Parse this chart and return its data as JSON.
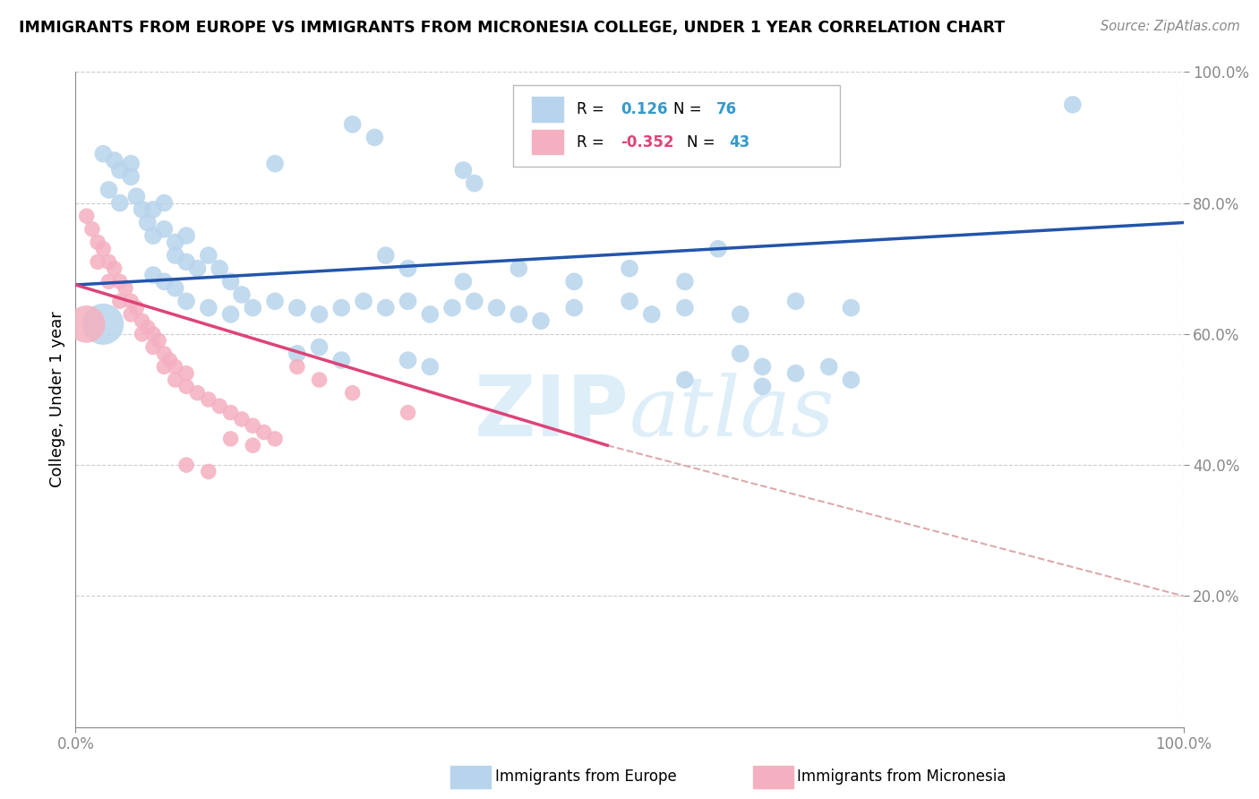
{
  "title": "IMMIGRANTS FROM EUROPE VS IMMIGRANTS FROM MICRONESIA COLLEGE, UNDER 1 YEAR CORRELATION CHART",
  "source": "Source: ZipAtlas.com",
  "ylabel": "College, Under 1 year",
  "xlim": [
    0.0,
    1.0
  ],
  "ylim": [
    0.0,
    1.0
  ],
  "xtick_positions": [
    0.0,
    1.0
  ],
  "xtick_labels": [
    "0.0%",
    "100.0%"
  ],
  "ytick_positions": [
    0.2,
    0.4,
    0.6,
    0.8,
    1.0
  ],
  "ytick_labels": [
    "20.0%",
    "40.0%",
    "60.0%",
    "80.0%",
    "100.0%"
  ],
  "blue_R": 0.126,
  "blue_N": 76,
  "pink_R": -0.352,
  "pink_N": 43,
  "blue_scatter_color": "#b8d4ec",
  "pink_scatter_color": "#f4b0c0",
  "blue_line_color": "#2255aa",
  "pink_line_color": "#dd4477",
  "pink_dash_color": "#ddaaaa",
  "grid_color": "#cccccc",
  "watermark_color": "#ddeef8",
  "blue_legend_color": "#b8d4ec",
  "pink_legend_color": "#f4b0c0",
  "blue_R_color": "#3399cc",
  "pink_R_color": "#dd4477",
  "N_color": "#3399cc",
  "blue_line": [
    0.0,
    0.675,
    1.0,
    0.77
  ],
  "pink_line_solid": [
    0.0,
    0.675,
    0.48,
    0.43
  ],
  "pink_line_dash": [
    0.48,
    0.43,
    1.0,
    0.2
  ],
  "blue_points": [
    [
      0.025,
      0.875
    ],
    [
      0.035,
      0.865
    ],
    [
      0.04,
      0.85
    ],
    [
      0.05,
      0.86
    ],
    [
      0.03,
      0.82
    ],
    [
      0.04,
      0.8
    ],
    [
      0.055,
      0.81
    ],
    [
      0.05,
      0.84
    ],
    [
      0.06,
      0.79
    ],
    [
      0.065,
      0.77
    ],
    [
      0.07,
      0.79
    ],
    [
      0.08,
      0.8
    ],
    [
      0.07,
      0.75
    ],
    [
      0.08,
      0.76
    ],
    [
      0.09,
      0.74
    ],
    [
      0.1,
      0.75
    ],
    [
      0.09,
      0.72
    ],
    [
      0.1,
      0.71
    ],
    [
      0.11,
      0.7
    ],
    [
      0.12,
      0.72
    ],
    [
      0.13,
      0.7
    ],
    [
      0.14,
      0.68
    ],
    [
      0.15,
      0.66
    ],
    [
      0.07,
      0.69
    ],
    [
      0.08,
      0.68
    ],
    [
      0.09,
      0.67
    ],
    [
      0.1,
      0.65
    ],
    [
      0.12,
      0.64
    ],
    [
      0.14,
      0.63
    ],
    [
      0.16,
      0.64
    ],
    [
      0.18,
      0.65
    ],
    [
      0.2,
      0.64
    ],
    [
      0.22,
      0.63
    ],
    [
      0.24,
      0.64
    ],
    [
      0.26,
      0.65
    ],
    [
      0.28,
      0.64
    ],
    [
      0.3,
      0.65
    ],
    [
      0.32,
      0.63
    ],
    [
      0.34,
      0.64
    ],
    [
      0.36,
      0.65
    ],
    [
      0.38,
      0.64
    ],
    [
      0.4,
      0.63
    ],
    [
      0.42,
      0.62
    ],
    [
      0.45,
      0.64
    ],
    [
      0.5,
      0.65
    ],
    [
      0.52,
      0.63
    ],
    [
      0.55,
      0.64
    ],
    [
      0.6,
      0.63
    ],
    [
      0.65,
      0.65
    ],
    [
      0.7,
      0.64
    ],
    [
      0.28,
      0.72
    ],
    [
      0.3,
      0.7
    ],
    [
      0.35,
      0.68
    ],
    [
      0.4,
      0.7
    ],
    [
      0.45,
      0.68
    ],
    [
      0.5,
      0.7
    ],
    [
      0.55,
      0.68
    ],
    [
      0.6,
      0.57
    ],
    [
      0.62,
      0.55
    ],
    [
      0.65,
      0.54
    ],
    [
      0.68,
      0.55
    ],
    [
      0.7,
      0.53
    ],
    [
      0.2,
      0.57
    ],
    [
      0.22,
      0.58
    ],
    [
      0.24,
      0.56
    ],
    [
      0.25,
      0.92
    ],
    [
      0.27,
      0.9
    ],
    [
      0.35,
      0.85
    ],
    [
      0.36,
      0.83
    ],
    [
      0.9,
      0.95
    ],
    [
      0.55,
      0.53
    ],
    [
      0.62,
      0.52
    ],
    [
      0.18,
      0.86
    ],
    [
      0.58,
      0.73
    ],
    [
      0.3,
      0.56
    ],
    [
      0.32,
      0.55
    ]
  ],
  "blue_large_point": [
    0.025,
    0.615
  ],
  "pink_points": [
    [
      0.01,
      0.78
    ],
    [
      0.015,
      0.76
    ],
    [
      0.02,
      0.74
    ],
    [
      0.02,
      0.71
    ],
    [
      0.025,
      0.73
    ],
    [
      0.03,
      0.71
    ],
    [
      0.03,
      0.68
    ],
    [
      0.035,
      0.7
    ],
    [
      0.04,
      0.68
    ],
    [
      0.04,
      0.65
    ],
    [
      0.045,
      0.67
    ],
    [
      0.05,
      0.65
    ],
    [
      0.05,
      0.63
    ],
    [
      0.055,
      0.64
    ],
    [
      0.06,
      0.62
    ],
    [
      0.06,
      0.6
    ],
    [
      0.065,
      0.61
    ],
    [
      0.07,
      0.6
    ],
    [
      0.07,
      0.58
    ],
    [
      0.075,
      0.59
    ],
    [
      0.08,
      0.57
    ],
    [
      0.08,
      0.55
    ],
    [
      0.085,
      0.56
    ],
    [
      0.09,
      0.55
    ],
    [
      0.09,
      0.53
    ],
    [
      0.1,
      0.52
    ],
    [
      0.1,
      0.54
    ],
    [
      0.11,
      0.51
    ],
    [
      0.12,
      0.5
    ],
    [
      0.13,
      0.49
    ],
    [
      0.14,
      0.48
    ],
    [
      0.15,
      0.47
    ],
    [
      0.16,
      0.46
    ],
    [
      0.17,
      0.45
    ],
    [
      0.18,
      0.44
    ],
    [
      0.2,
      0.55
    ],
    [
      0.22,
      0.53
    ],
    [
      0.25,
      0.51
    ],
    [
      0.14,
      0.44
    ],
    [
      0.16,
      0.43
    ],
    [
      0.1,
      0.4
    ],
    [
      0.12,
      0.39
    ],
    [
      0.3,
      0.48
    ]
  ],
  "pink_large_point": [
    0.01,
    0.615
  ],
  "bottom_legend_blue_label": "Immigrants from Europe",
  "bottom_legend_pink_label": "Immigrants from Micronesia"
}
